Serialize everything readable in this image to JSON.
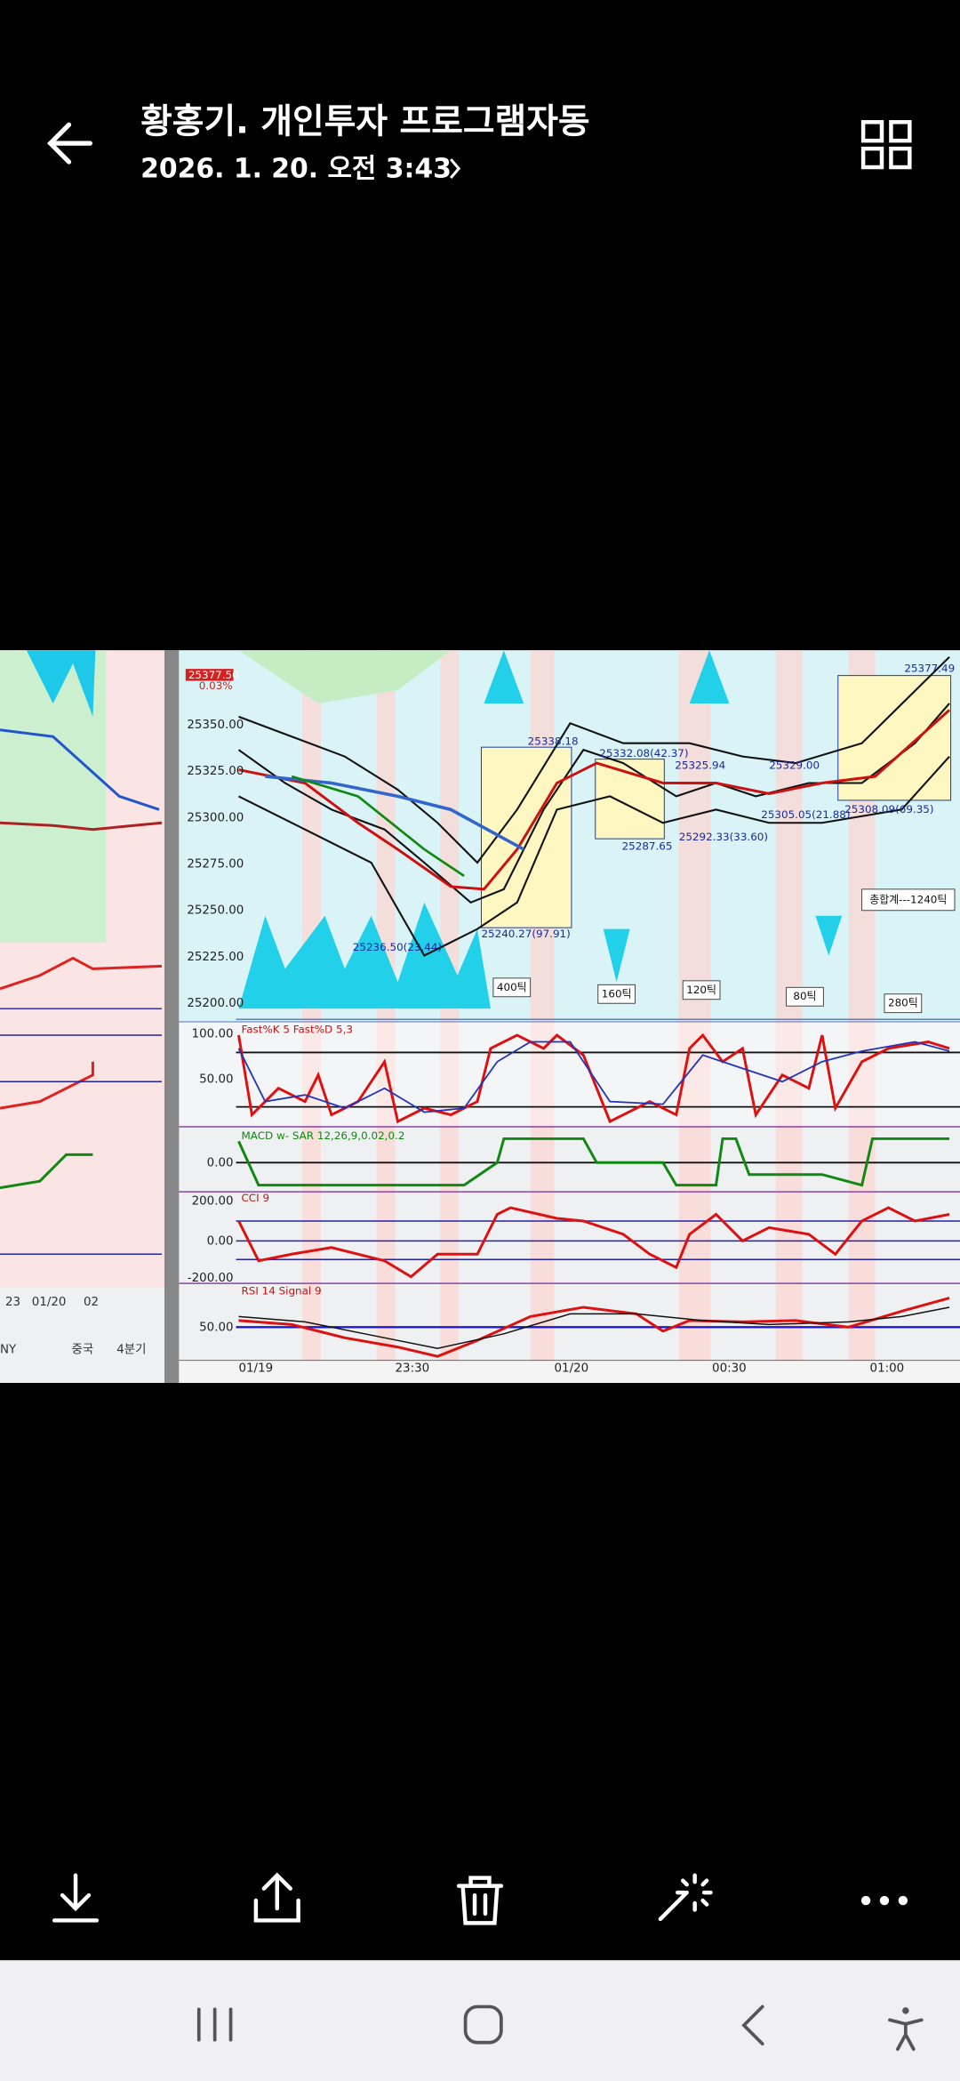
{
  "header": {
    "title": "황홍기. 개인투자 프로그램자동",
    "subtitle": "2026. 1. 20. 오전 3:43"
  },
  "photo": {
    "price_labels": [
      "25350.00",
      "25325.00",
      "25300.00",
      "25275.00",
      "25250.00",
      "25225.00",
      "25200.00"
    ],
    "current_price": "25377.50",
    "change": "0.03%",
    "annotations": [
      "25338.18",
      "25332.08(42.37)",
      "25325.94",
      "25287.65",
      "25292.33(33.60)",
      "25329.00",
      "25305.05(21.88)",
      "25308.09(69.35)",
      "25240.27(97.91)",
      "25236.50(23.44)",
      "25377.49"
    ],
    "tick_boxes": [
      "400틱",
      "160틱",
      "120틱",
      "80틱",
      "280틱"
    ],
    "total": "총합계---1240틱",
    "indicators": [
      {
        "name": "Fast%K 5  Fast%D 5,3",
        "levels": [
          "100.00",
          "50.00"
        ]
      },
      {
        "name": "MACD w- SAR 12,26,9,0.02,0.2",
        "levels": [
          "0.00"
        ]
      },
      {
        "name": "CCI 9",
        "levels": [
          "200.00",
          "0.00",
          "-200.00"
        ]
      },
      {
        "name": "RSI 14  Signal 9",
        "levels": [
          "50.00"
        ]
      }
    ],
    "time_labels": [
      "01/19",
      "23:30",
      "01/20",
      "00:30",
      "01:00"
    ],
    "left_panel": [
      "23",
      "01/20",
      "02",
      "NY",
      "중국",
      "4분기"
    ]
  }
}
